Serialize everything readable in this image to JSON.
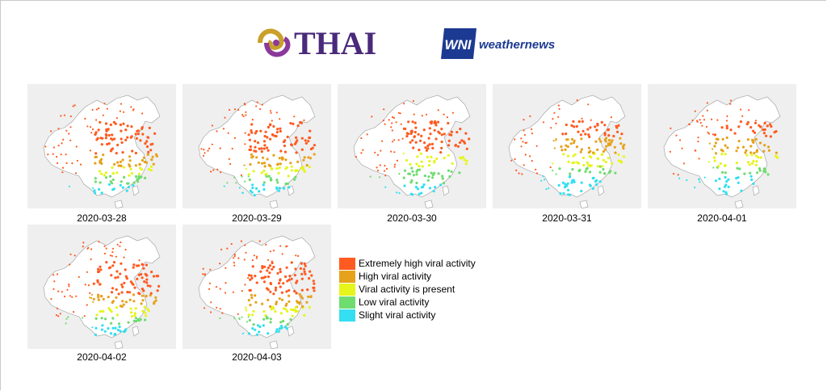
{
  "branding": {
    "thai_logo_text": "THAI",
    "wni_mark_text": "WNI",
    "wni_text": "weathernews",
    "colors": {
      "thai_purple": "#4a2a7a",
      "thai_gold": "#c9a02a",
      "wni_blue": "#1c3a92"
    }
  },
  "maps": [
    {
      "date": "2020-03-28"
    },
    {
      "date": "2020-03-29"
    },
    {
      "date": "2020-03-30"
    },
    {
      "date": "2020-03-31"
    },
    {
      "date": "2020-04-01"
    },
    {
      "date": "2020-04-02"
    },
    {
      "date": "2020-04-03"
    }
  ],
  "legend": [
    {
      "label": "Extremely high viral activity",
      "color": "#ff5a1f"
    },
    {
      "label": "High viral activity",
      "color": "#e6a21c"
    },
    {
      "label": "Viral activity is present",
      "color": "#e6f51c"
    },
    {
      "label": "Low viral activity",
      "color": "#6fdc6f"
    },
    {
      "label": "Slight viral activity",
      "color": "#33dff0"
    }
  ]
}
